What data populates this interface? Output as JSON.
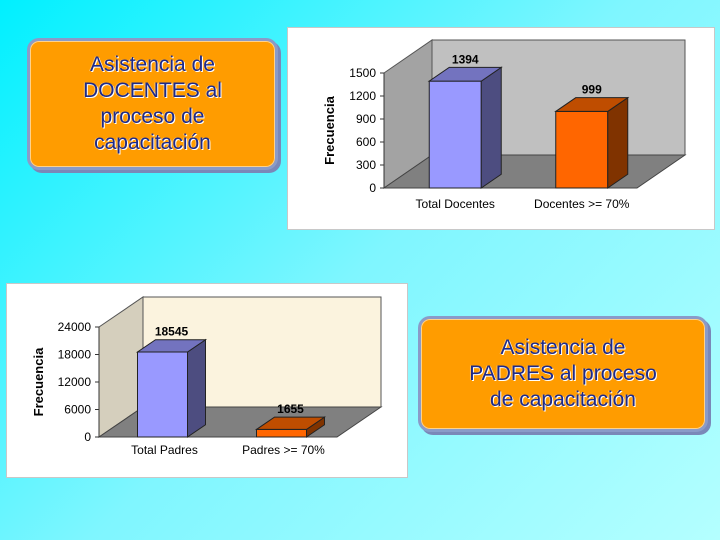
{
  "callouts": {
    "docentes": "Asistencia de\nDOCENTES al\nproceso de\ncapacitación",
    "padres": "Asistencia de\nPADRES al proceso\nde capacitación"
  },
  "colors": {
    "background": "#00f0ff",
    "callout_fill": "#ff9c00",
    "callout_text": "#1d2a8a",
    "bar_blue": "#9999ff",
    "bar_orange": "#ff6600",
    "wall_gray": "#c0c0c0",
    "wall_beige": "#fbf3de"
  },
  "chart_data": [
    {
      "type": "bar",
      "categories": [
        "Total Docentes",
        "Docentes >= 70%"
      ],
      "values": [
        1394,
        999
      ],
      "ylabel": "Frecuencia",
      "yticks": [
        0,
        300,
        600,
        900,
        1200,
        1500
      ],
      "ylim": [
        0,
        1500
      ],
      "style": "3d",
      "bar_colors": [
        "#9999ff",
        "#ff6600"
      ],
      "wall_color": "#c0c0c0",
      "grid": false
    },
    {
      "type": "bar",
      "categories": [
        "Total Padres",
        "Padres >= 70%"
      ],
      "values": [
        18545,
        1655
      ],
      "ylabel": "Frecuencia",
      "yticks": [
        0,
        6000,
        12000,
        18000,
        24000
      ],
      "ylim": [
        0,
        24000
      ],
      "style": "3d",
      "bar_colors": [
        "#9999ff",
        "#ff6600"
      ],
      "wall_color": "#fbf3de",
      "grid": false
    }
  ]
}
